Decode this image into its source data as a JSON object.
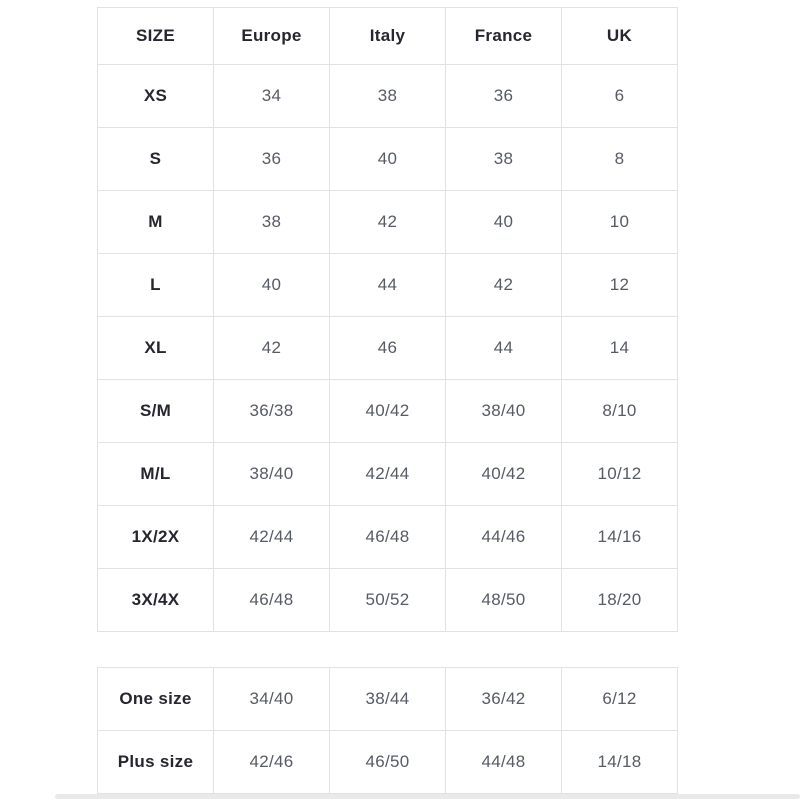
{
  "colors": {
    "background": "#ffffff",
    "border": "#e2e2e2",
    "header_text": "#26262e",
    "data_text": "#565b64",
    "scrollbar": "#e9e9e9"
  },
  "size_table": {
    "headers": [
      "SIZE",
      "Europe",
      "Italy",
      "France",
      "UK"
    ],
    "rows": [
      {
        "size": "XS",
        "values": [
          "34",
          "38",
          "36",
          "6"
        ]
      },
      {
        "size": "S",
        "values": [
          "36",
          "40",
          "38",
          "8"
        ]
      },
      {
        "size": "M",
        "values": [
          "38",
          "42",
          "40",
          "10"
        ]
      },
      {
        "size": "L",
        "values": [
          "40",
          "44",
          "42",
          "12"
        ]
      },
      {
        "size": "XL",
        "values": [
          "42",
          "46",
          "44",
          "14"
        ]
      },
      {
        "size": "S/M",
        "values": [
          "36/38",
          "40/42",
          "38/40",
          "8/10"
        ]
      },
      {
        "size": "M/L",
        "values": [
          "38/40",
          "42/44",
          "40/42",
          "10/12"
        ]
      },
      {
        "size": "1X/2X",
        "values": [
          "42/44",
          "46/48",
          "44/46",
          "14/16"
        ]
      },
      {
        "size": "3X/4X",
        "values": [
          "46/48",
          "50/52",
          "48/50",
          "18/20"
        ]
      }
    ]
  },
  "special_size_table": {
    "rows": [
      {
        "size": "One size",
        "values": [
          "34/40",
          "38/44",
          "36/42",
          "6/12"
        ]
      },
      {
        "size": "Plus size",
        "values": [
          "42/46",
          "46/50",
          "44/48",
          "14/18"
        ]
      }
    ]
  },
  "chart_data": {
    "type": "table",
    "title": "",
    "columns": [
      "SIZE",
      "Europe",
      "Italy",
      "France",
      "UK"
    ],
    "rows": [
      [
        "XS",
        "34",
        "38",
        "36",
        "6"
      ],
      [
        "S",
        "36",
        "40",
        "38",
        "8"
      ],
      [
        "M",
        "38",
        "42",
        "40",
        "10"
      ],
      [
        "L",
        "40",
        "44",
        "42",
        "12"
      ],
      [
        "XL",
        "42",
        "46",
        "44",
        "14"
      ],
      [
        "S/M",
        "36/38",
        "40/42",
        "38/40",
        "8/10"
      ],
      [
        "M/L",
        "38/40",
        "42/44",
        "40/42",
        "10/12"
      ],
      [
        "1X/2X",
        "42/44",
        "46/48",
        "44/46",
        "14/16"
      ],
      [
        "3X/4X",
        "46/48",
        "50/52",
        "48/50",
        "18/20"
      ],
      [
        "One size",
        "34/40",
        "38/44",
        "36/42",
        "6/12"
      ],
      [
        "Plus size",
        "42/46",
        "46/50",
        "44/48",
        "14/18"
      ]
    ],
    "layout": {
      "grid": true,
      "two_sections": true,
      "header_bold": true,
      "first_column_bold": true
    }
  }
}
